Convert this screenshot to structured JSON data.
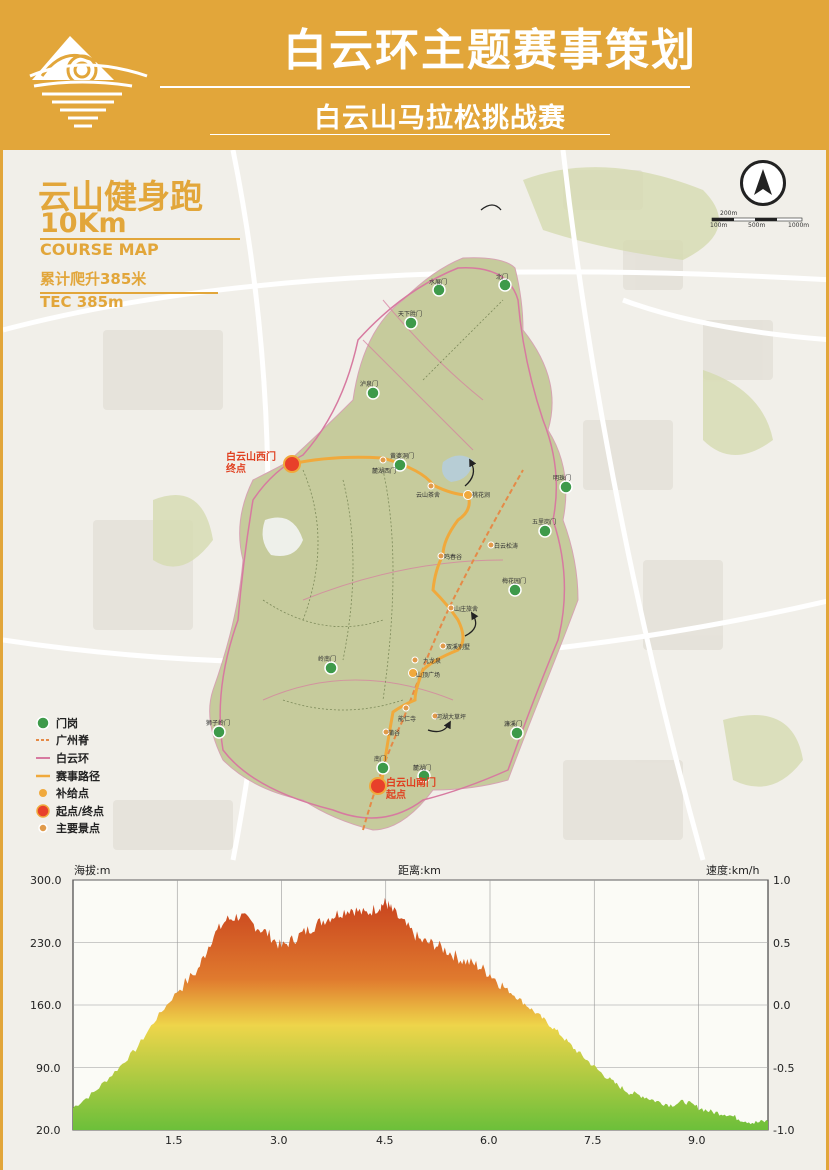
{
  "header": {
    "title": "白云环主题赛事策划",
    "subtitle": "白云山马拉松挑战赛"
  },
  "race": {
    "name": "云山健身跑",
    "distance": "10Km",
    "course_map": "COURSE MAP",
    "climb_cn": "累计爬升385米",
    "climb_en": "TEC 385m"
  },
  "scale": {
    "labels": [
      "200m",
      "100m",
      "500m",
      "1000m"
    ]
  },
  "map_labels": {
    "start_finish_west": [
      "白云山西门",
      "终点"
    ],
    "start_south": [
      "白云山南门",
      "起点"
    ],
    "gates": [
      "水展门",
      "北门",
      "天下胜门",
      "泸泉门",
      "濂溪门",
      "麓湖门",
      "黄婆洞门",
      "明珠门",
      "五里岗门",
      "岭南门",
      "梅花园门",
      "狮子岭门",
      "南门",
      "麓湖西门"
    ],
    "spots": [
      "云山茶舍",
      "桃花涧",
      "白云松涛",
      "鸣春谷",
      "山庄旅舍",
      "双溪别墅",
      "九龙泉",
      "山顶广场",
      "能仁寺",
      "河湖大草坪",
      "蒲谷",
      "白云晚望"
    ]
  },
  "legend": [
    {
      "label": "门岗",
      "icon": "gate-icon"
    },
    {
      "label": "广州脊",
      "icon": "orange-dashed-line-icon"
    },
    {
      "label": "白云环",
      "icon": "pink-line-icon"
    },
    {
      "label": "赛事路径",
      "icon": "gold-line-icon"
    },
    {
      "label": "补给点",
      "icon": "supply-dot-icon"
    },
    {
      "label": "起点/终点",
      "icon": "start-finish-icon"
    },
    {
      "label": "主要景点",
      "icon": "spot-icon"
    }
  ],
  "chart_data": {
    "type": "area",
    "title": "",
    "xlabel": "距离:km",
    "ylabel": "海拔:m",
    "y2label": "速度:km/h",
    "xlim": [
      0,
      10
    ],
    "ylim": [
      20,
      300
    ],
    "y2lim": [
      -1.0,
      1.0
    ],
    "x_ticks": [
      "1.5",
      "3.0",
      "4.5",
      "6.0",
      "7.5",
      "9.0"
    ],
    "y_ticks": [
      "20.0",
      "90.0",
      "160.0",
      "230.0",
      "300.0"
    ],
    "y2_ticks": [
      "-1.0",
      "-0.5",
      "0.0",
      "0.5",
      "1.0"
    ],
    "grid": true,
    "series": [
      {
        "x": [
          0,
          0.3,
          0.6,
          0.9,
          1.2,
          1.5,
          1.8,
          2.0,
          2.2,
          2.4,
          2.6,
          2.8,
          3.0,
          3.2,
          3.4,
          3.6,
          3.8,
          4.0,
          4.2,
          4.4,
          4.5,
          4.6,
          4.8,
          5.0,
          5.2,
          5.4,
          5.6,
          5.8,
          6.0,
          6.2,
          6.4,
          6.6,
          6.8,
          7.0,
          7.2,
          7.4,
          7.6,
          7.8,
          8.0,
          8.2,
          8.4,
          8.6,
          8.8,
          9.0,
          9.2,
          9.4,
          9.6,
          9.8,
          10.0
        ],
        "values": [
          45,
          62,
          85,
          110,
          145,
          175,
          200,
          235,
          255,
          260,
          250,
          240,
          225,
          235,
          245,
          255,
          262,
          268,
          262,
          270,
          275,
          265,
          248,
          232,
          228,
          220,
          210,
          205,
          195,
          180,
          168,
          155,
          142,
          128,
          112,
          98,
          84,
          72,
          62,
          58,
          52,
          48,
          52,
          45,
          40,
          38,
          32,
          28,
          30
        ]
      }
    ]
  },
  "colors": {
    "brand": "#e2a63a",
    "park": "#c4c99a",
    "route": "#f0a93c",
    "ring": "#d77aa0",
    "start": "#e8402a",
    "gate": "#3e9a4a"
  }
}
